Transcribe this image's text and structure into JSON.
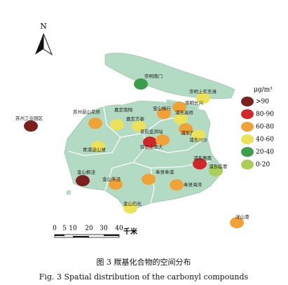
{
  "map": {
    "north": "N",
    "legend": {
      "unit": "μg/m³",
      "items": [
        {
          "label": ">90",
          "color": "#7b1f1f"
        },
        {
          "label": "80-90",
          "color": "#d0282a"
        },
        {
          "label": "60-80",
          "color": "#f0a238"
        },
        {
          "label": "40-60",
          "color": "#ece25a"
        },
        {
          "label": "20-40",
          "color": "#3a9e4c"
        },
        {
          "label": "0-20",
          "color": "#a9cf58"
        }
      ]
    },
    "scale": {
      "ticks": [
        "0",
        "5",
        "10",
        "20",
        "30",
        "40"
      ],
      "unit": "千米"
    },
    "stations": [
      {
        "label": "苏州工业园区",
        "color": "#7b1f1f"
      },
      {
        "label": "崇明南门",
        "color": "#3a9e4c"
      },
      {
        "label": "崇明上实东滩",
        "color": "#ece25a"
      },
      {
        "label": "崇明长兴",
        "color": "#f0a238"
      },
      {
        "label": "宝山杨行",
        "color": "#f0a238"
      },
      {
        "label": "苏州昆山花桥",
        "color": "#f0a238"
      },
      {
        "label": "嘉定南翔",
        "color": "#ece25a"
      },
      {
        "label": "嘉定方泰",
        "color": "#ece25a"
      },
      {
        "label": "浦东高桥",
        "color": "#ece25a"
      },
      {
        "label": "普陀监测站",
        "color": "#d0282a"
      },
      {
        "label": "浦东监测站",
        "color": "#f0a238"
      },
      {
        "label": "浦东川沙",
        "color": "#ece25a"
      },
      {
        "label": "徐汇上师大",
        "color": "#f0a238"
      },
      {
        "label": "青浦淀山湖",
        "color": "#ece25a"
      },
      {
        "label": "浦东惠南",
        "color": "#d0282a"
      },
      {
        "label": "浦东临港",
        "color": "#a9cf58"
      },
      {
        "label": "奉贤奉浦",
        "color": "#f0a238"
      },
      {
        "label": "奉贤海湾",
        "color": "#f0a238"
      },
      {
        "label": "金山枫泾",
        "color": "#7b1f1f"
      },
      {
        "label": "金山朱泾",
        "color": "#f0a238"
      },
      {
        "label": "金山石化",
        "color": "#ece25a"
      },
      {
        "label": "洋山港",
        "color": "#f0a238"
      }
    ]
  },
  "caption": {
    "cn": "图 3  羰基化合物的空间分布",
    "en": "Fig. 3  Spatial distribution of the carbonyl compounds"
  }
}
